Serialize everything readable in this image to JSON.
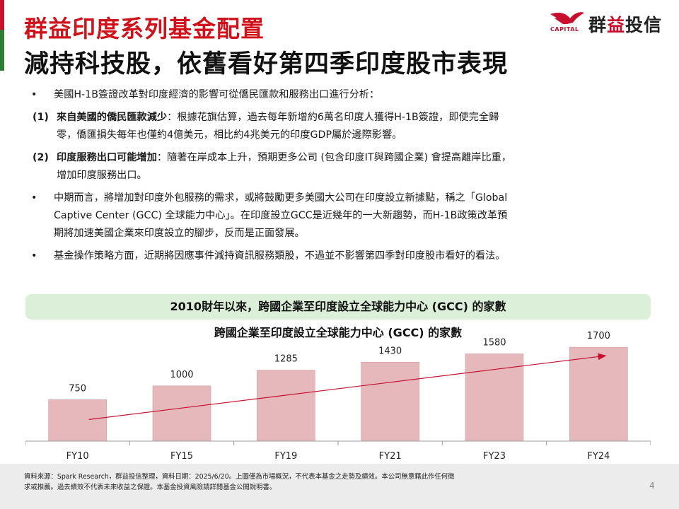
{
  "header": {
    "title_line1": "群益印度系列基金配置",
    "title_line2": "減持科技股，依舊看好第四季印度股市表現"
  },
  "logo": {
    "name_part1": "群",
    "name_part2": "益",
    "name_part3": "投信",
    "caption": "CAPITAL"
  },
  "bullets": {
    "b1": "美國H-1B簽證改革對印度經濟的影響可從僑民匯款和服務出口進行分析：",
    "n1_mark": "(1)",
    "n1_bold": "來自美國的僑民匯款減少",
    "n1_line1": "：根據花旗估算，過去每年新增約6萬名印度人獲得H-1B簽證，即使完全歸",
    "n1_line2": "零，僑匯損失每年也僅約4億美元，相比約4兆美元的印度GDP屬於邊際影響。",
    "n2_mark": "(2)",
    "n2_bold": "印度服務出口可能增加",
    "n2_line1": "：隨著在岸成本上升，預期更多公司 (包含印度IT與跨國企業) 會提高離岸比重，",
    "n2_line2": "增加印度服務出口。",
    "b2_line1": "中期而言，將增加對印度外包服務的需求，或將鼓勵更多美國大公司在印度設立新據點，稱之「Global",
    "b2_line2": "Captive Center (GCC) 全球能力中心」。在印度設立GCC是近幾年的一大新趨勢，而H-1B政策改革預",
    "b2_line3": "期將加速美國企業來印度設立的腳步，反而是正面發展。",
    "b3": "基金操作策略方面，近期將因應事件減持資訊服務類股，不過並不影響第四季對印度股市看好的看法。"
  },
  "banner": {
    "title": "2010財年以來，跨國企業至印度設立全球能力中心 (GCC) 的家數"
  },
  "chart_data": {
    "type": "bar",
    "title": "跨國企業至印度設立全球能力中心 (GCC) 的家數",
    "categories": [
      "FY10",
      "FY15",
      "FY19",
      "FY21",
      "FY23",
      "FY24"
    ],
    "values": [
      750,
      1000,
      1285,
      1430,
      1580,
      1700
    ],
    "bar_color": "#e5b8bb",
    "bar_border": "#d49aa0",
    "trend_color": "#c8102e",
    "xlabel": "",
    "ylabel": "",
    "ylim": [
      0,
      2150
    ],
    "grid": false,
    "legend": "none"
  },
  "footer": {
    "line1": "資料來源：Spark Research，群益投信整理，資料日期：2025/6/20。上圖僅為市場概況，不代表本基金之走勢及績效。本公司無意藉此作任何徵",
    "line2": "求或推薦。過去績效不代表未來收益之保證。本基金投資風險請詳閱基金公開說明書。",
    "page_number": "4"
  },
  "colors": {
    "title_red": "#d0121b",
    "banner_green": "#dcefd8",
    "footer_gray": "#ececec"
  }
}
